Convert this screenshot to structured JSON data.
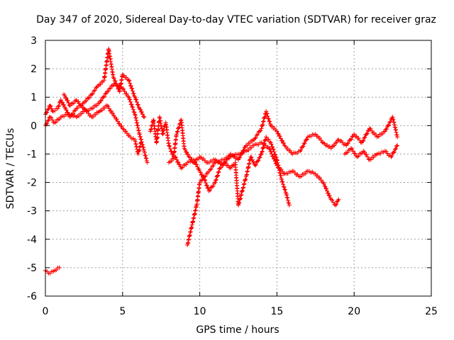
{
  "chart_data": {
    "type": "scatter",
    "title": "Day 347 of 2020, Sidereal Day-to-day VTEC variation (SDTVAR) for receiver graz",
    "xlabel": "GPS time / hours",
    "ylabel": "SDTVAR / TECUs",
    "xlim": [
      0,
      25
    ],
    "ylim": [
      -6,
      3
    ],
    "xticks": [
      "0",
      "5",
      "10",
      "15",
      "20",
      "25"
    ],
    "yticks": [
      "3",
      "2",
      "1",
      "0",
      "-1",
      "-2",
      "-3",
      "-4",
      "-5",
      "-6"
    ],
    "grid": true,
    "marker": "+",
    "color": "#ff0000",
    "series": [
      {
        "name": "segment-1",
        "points": [
          [
            0.0,
            0.4
          ],
          [
            0.3,
            0.7
          ],
          [
            0.5,
            0.5
          ],
          [
            0.8,
            0.6
          ],
          [
            1.0,
            0.9
          ],
          [
            1.3,
            0.6
          ],
          [
            1.6,
            0.3
          ],
          [
            2.0,
            0.6
          ],
          [
            2.5,
            0.8
          ],
          [
            3.0,
            1.1
          ],
          [
            3.4,
            1.4
          ],
          [
            3.8,
            1.6
          ],
          [
            4.1,
            2.7
          ],
          [
            4.4,
            1.7
          ],
          [
            4.8,
            1.2
          ],
          [
            5.0,
            1.8
          ],
          [
            5.4,
            1.6
          ],
          [
            5.8,
            1.0
          ],
          [
            6.1,
            0.6
          ],
          [
            6.4,
            0.3
          ]
        ]
      },
      {
        "name": "segment-2",
        "points": [
          [
            0.0,
            0.0
          ],
          [
            0.3,
            0.3
          ],
          [
            0.6,
            0.1
          ],
          [
            1.0,
            0.3
          ],
          [
            1.5,
            0.4
          ],
          [
            2.0,
            0.3
          ],
          [
            2.5,
            0.5
          ],
          [
            3.0,
            0.6
          ],
          [
            3.5,
            0.8
          ],
          [
            4.0,
            1.2
          ],
          [
            4.5,
            1.5
          ],
          [
            5.0,
            1.3
          ],
          [
            5.4,
            1.0
          ],
          [
            5.8,
            0.4
          ],
          [
            6.1,
            -0.3
          ],
          [
            6.4,
            -0.9
          ],
          [
            6.6,
            -1.3
          ]
        ]
      },
      {
        "name": "segment-3",
        "points": [
          [
            1.2,
            1.1
          ],
          [
            1.6,
            0.7
          ],
          [
            2.0,
            0.9
          ],
          [
            2.5,
            0.6
          ],
          [
            3.0,
            0.3
          ],
          [
            3.5,
            0.5
          ],
          [
            4.0,
            0.7
          ],
          [
            4.5,
            0.3
          ],
          [
            5.0,
            -0.1
          ],
          [
            5.5,
            -0.4
          ],
          [
            5.8,
            -0.5
          ],
          [
            6.0,
            -1.0
          ],
          [
            6.2,
            -0.6
          ]
        ]
      },
      {
        "name": "segment-4",
        "points": [
          [
            6.8,
            -0.2
          ],
          [
            7.0,
            0.2
          ],
          [
            7.2,
            -0.6
          ],
          [
            7.4,
            0.3
          ],
          [
            7.6,
            -0.3
          ],
          [
            7.8,
            0.1
          ],
          [
            8.0,
            -0.7
          ],
          [
            8.3,
            -1.1
          ],
          [
            8.5,
            -0.3
          ],
          [
            8.8,
            0.2
          ],
          [
            9.0,
            -0.8
          ],
          [
            9.3,
            -1.1
          ],
          [
            9.6,
            -1.3
          ],
          [
            10.0,
            -1.1
          ],
          [
            10.5,
            -1.3
          ],
          [
            11.0,
            -1.2
          ],
          [
            11.5,
            -1.4
          ],
          [
            12.0,
            -1.0
          ],
          [
            12.5,
            -1.2
          ],
          [
            13.0,
            -0.7
          ],
          [
            13.5,
            -0.5
          ],
          [
            14.0,
            -0.1
          ],
          [
            14.3,
            0.5
          ],
          [
            14.6,
            0.0
          ],
          [
            15.0,
            -0.2
          ],
          [
            15.5,
            -0.7
          ],
          [
            16.0,
            -1.0
          ],
          [
            16.5,
            -0.9
          ],
          [
            17.0,
            -0.4
          ],
          [
            17.5,
            -0.3
          ],
          [
            18.0,
            -0.6
          ],
          [
            18.5,
            -0.8
          ],
          [
            19.0,
            -0.5
          ],
          [
            19.5,
            -0.7
          ],
          [
            20.0,
            -0.3
          ],
          [
            20.5,
            -0.6
          ],
          [
            21.0,
            -0.1
          ],
          [
            21.5,
            -0.4
          ],
          [
            22.0,
            -0.2
          ],
          [
            22.5,
            0.3
          ],
          [
            22.8,
            -0.4
          ]
        ]
      },
      {
        "name": "segment-5",
        "points": [
          [
            8.0,
            -1.3
          ],
          [
            8.4,
            -1.1
          ],
          [
            8.8,
            -1.5
          ],
          [
            9.2,
            -1.3
          ],
          [
            9.6,
            -1.2
          ],
          [
            10.0,
            -1.6
          ],
          [
            10.3,
            -1.9
          ],
          [
            10.6,
            -2.3
          ],
          [
            11.0,
            -2.0
          ],
          [
            11.3,
            -1.5
          ],
          [
            11.6,
            -1.3
          ],
          [
            12.0,
            -1.5
          ],
          [
            12.3,
            -1.3
          ],
          [
            12.5,
            -2.8
          ],
          [
            12.8,
            -2.2
          ],
          [
            13.0,
            -1.8
          ],
          [
            13.3,
            -1.1
          ],
          [
            13.6,
            -1.4
          ],
          [
            14.0,
            -1.0
          ],
          [
            14.3,
            -0.4
          ],
          [
            14.6,
            -0.6
          ],
          [
            15.0,
            -1.2
          ],
          [
            15.3,
            -1.9
          ],
          [
            15.6,
            -2.4
          ],
          [
            15.8,
            -2.8
          ]
        ]
      },
      {
        "name": "segment-6",
        "points": [
          [
            9.2,
            -4.2
          ],
          [
            9.5,
            -3.5
          ],
          [
            9.8,
            -2.8
          ],
          [
            10.0,
            -2.0
          ],
          [
            10.3,
            -1.8
          ],
          [
            10.6,
            -1.6
          ],
          [
            11.0,
            -1.3
          ],
          [
            11.5,
            -1.2
          ],
          [
            12.0,
            -1.1
          ],
          [
            12.5,
            -1.0
          ],
          [
            13.0,
            -0.9
          ],
          [
            13.5,
            -0.7
          ],
          [
            14.0,
            -0.6
          ],
          [
            14.5,
            -0.8
          ],
          [
            15.0,
            -1.4
          ],
          [
            15.5,
            -1.7
          ],
          [
            16.0,
            -1.6
          ],
          [
            16.5,
            -1.8
          ],
          [
            17.0,
            -1.6
          ],
          [
            17.5,
            -1.7
          ],
          [
            18.0,
            -2.0
          ],
          [
            18.5,
            -2.6
          ],
          [
            18.8,
            -2.8
          ],
          [
            19.0,
            -2.6
          ]
        ]
      },
      {
        "name": "segment-7",
        "points": [
          [
            19.4,
            -1.0
          ],
          [
            19.8,
            -0.8
          ],
          [
            20.2,
            -1.1
          ],
          [
            20.6,
            -0.9
          ],
          [
            21.0,
            -1.2
          ],
          [
            21.5,
            -1.0
          ],
          [
            22.0,
            -0.9
          ],
          [
            22.4,
            -1.1
          ],
          [
            22.8,
            -0.7
          ]
        ]
      },
      {
        "name": "segment-8",
        "points": [
          [
            0.0,
            -5.1
          ],
          [
            0.3,
            -5.2
          ],
          [
            0.6,
            -5.1
          ],
          [
            0.9,
            -5.0
          ]
        ]
      }
    ]
  }
}
